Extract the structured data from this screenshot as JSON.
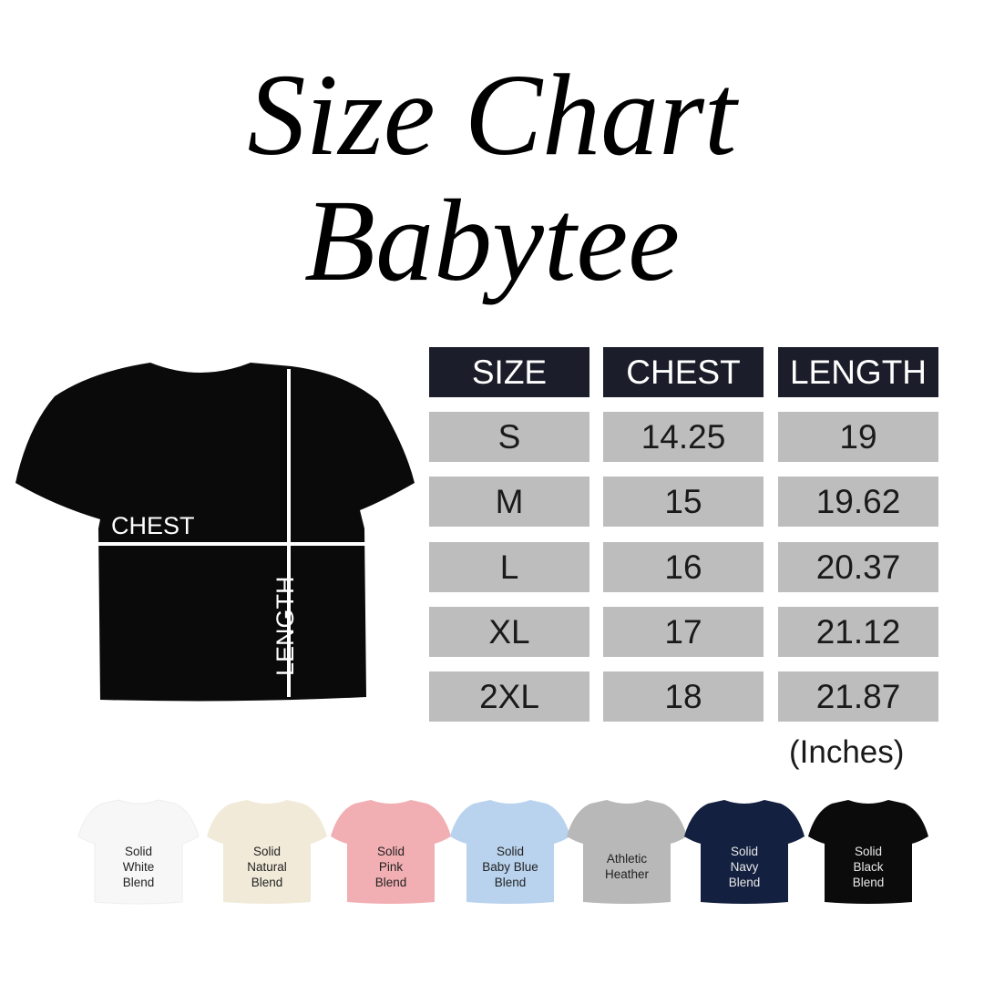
{
  "title": {
    "line1": "Size Chart",
    "line2": "Babytee"
  },
  "diagram": {
    "chest_label": "CHEST",
    "length_label": "LENGTH",
    "shirt_color": "#0a0a0a"
  },
  "table": {
    "headers": [
      "SIZE",
      "CHEST",
      "LENGTH"
    ],
    "rows": [
      [
        "S",
        "14.25",
        "19"
      ],
      [
        "M",
        "15",
        "19.62"
      ],
      [
        "L",
        "16",
        "20.37"
      ],
      [
        "XL",
        "17",
        "21.12"
      ],
      [
        "2XL",
        "18",
        "21.87"
      ]
    ],
    "unit": "(Inches)",
    "header_color": "#1b1e2a",
    "row_color": "#bdbdbd"
  },
  "colors": [
    {
      "lines": [
        "Solid",
        "White",
        "Blend"
      ],
      "hex": "#f7f7f7",
      "text": "#222"
    },
    {
      "lines": [
        "Solid",
        "Natural",
        "Blend"
      ],
      "hex": "#f1ead9",
      "text": "#222"
    },
    {
      "lines": [
        "Solid",
        "Pink",
        "Blend"
      ],
      "hex": "#f2afb3",
      "text": "#222"
    },
    {
      "lines": [
        "Solid",
        "Baby Blue",
        "Blend"
      ],
      "hex": "#b9d3ee",
      "text": "#222"
    },
    {
      "lines": [
        "Athletic",
        "Heather"
      ],
      "hex": "#b8b8b8",
      "text": "#222"
    },
    {
      "lines": [
        "Solid",
        "Navy",
        "Blend"
      ],
      "hex": "#13203f",
      "text": "#e8e8e8"
    },
    {
      "lines": [
        "Solid",
        "Black",
        "Blend"
      ],
      "hex": "#0b0b0b",
      "text": "#e8e8e8"
    }
  ]
}
